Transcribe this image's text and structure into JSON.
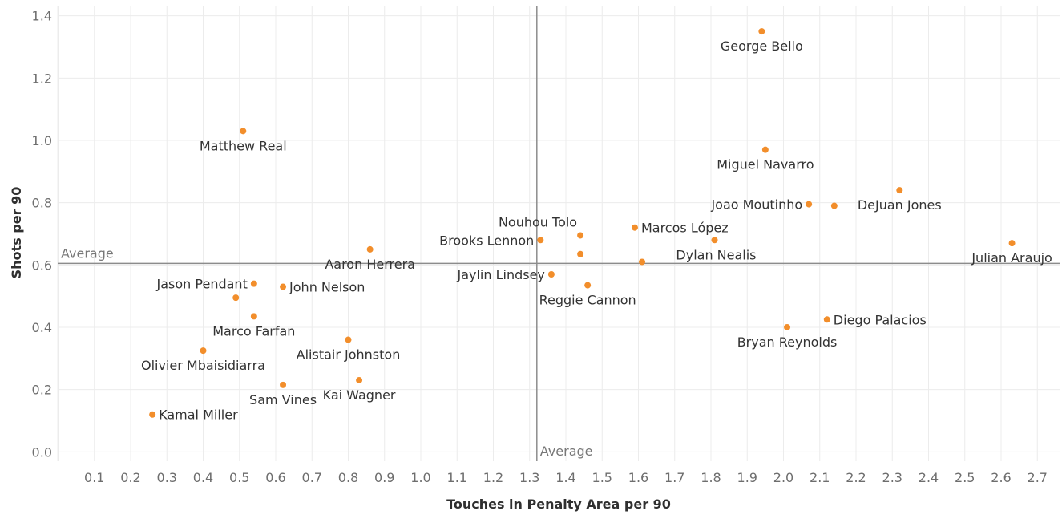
{
  "chart_data": {
    "type": "scatter",
    "xlabel": "Touches in Penalty Area per 90",
    "ylabel": "Shots per 90",
    "xlim": [
      0,
      2.8
    ],
    "ylim": [
      -0.03,
      1.43
    ],
    "x_ticks": [
      "0.1",
      "0.2",
      "0.3",
      "0.4",
      "0.5",
      "0.6",
      "0.7",
      "0.8",
      "0.9",
      "1.0",
      "1.1",
      "1.2",
      "1.3",
      "1.4",
      "1.5",
      "1.6",
      "1.7",
      "1.8",
      "1.9",
      "2.0",
      "2.1",
      "2.2",
      "2.3",
      "2.4",
      "2.5",
      "2.6",
      "2.7"
    ],
    "y_ticks": [
      "0.0",
      "0.2",
      "0.4",
      "0.6",
      "0.8",
      "1.0",
      "1.2",
      "1.4"
    ],
    "grid": true,
    "point_color": "#f28e2b",
    "reference_lines": {
      "x_average": 1.32,
      "y_average": 0.605,
      "x_label": "Average",
      "y_label": "Average"
    },
    "points": [
      {
        "name": "George Bello",
        "x": 1.94,
        "y": 1.35,
        "label_pos": "below"
      },
      {
        "name": "Matthew Real",
        "x": 0.51,
        "y": 1.03,
        "label_pos": "below"
      },
      {
        "name": "Miguel Navarro",
        "x": 1.95,
        "y": 0.97,
        "label_pos": "below"
      },
      {
        "name": "DeJuan Jones",
        "x": 2.32,
        "y": 0.84,
        "label_pos": "below"
      },
      {
        "name": "Joao Moutinho",
        "x": 2.07,
        "y": 0.795,
        "label_pos": "left"
      },
      {
        "name": "",
        "x": 2.14,
        "y": 0.79,
        "label_pos": "none"
      },
      {
        "name": "Marcos López",
        "x": 1.59,
        "y": 0.72,
        "label_pos": "right"
      },
      {
        "name": "Nouhou Tolo",
        "x": 1.44,
        "y": 0.695,
        "label_pos": "above-left"
      },
      {
        "name": "Brooks Lennon",
        "x": 1.33,
        "y": 0.68,
        "label_pos": "left"
      },
      {
        "name": "Dylan Nealis",
        "x": 1.81,
        "y": 0.68,
        "label_pos": "below-left"
      },
      {
        "name": "Julian Araujo",
        "x": 2.63,
        "y": 0.67,
        "label_pos": "below"
      },
      {
        "name": "Aaron Herrera",
        "x": 0.86,
        "y": 0.65,
        "label_pos": "below"
      },
      {
        "name": "",
        "x": 1.44,
        "y": 0.635,
        "label_pos": "none"
      },
      {
        "name": "",
        "x": 1.61,
        "y": 0.61,
        "label_pos": "none"
      },
      {
        "name": "Jaylin Lindsey",
        "x": 1.36,
        "y": 0.57,
        "label_pos": "left"
      },
      {
        "name": "Jason Pendant",
        "x": 0.54,
        "y": 0.54,
        "label_pos": "left"
      },
      {
        "name": "Reggie Cannon",
        "x": 1.46,
        "y": 0.535,
        "label_pos": "below"
      },
      {
        "name": "John Nelson",
        "x": 0.62,
        "y": 0.53,
        "label_pos": "right"
      },
      {
        "name": "",
        "x": 0.49,
        "y": 0.495,
        "label_pos": "none"
      },
      {
        "name": "Marco Farfan",
        "x": 0.54,
        "y": 0.435,
        "label_pos": "below"
      },
      {
        "name": "Diego Palacios",
        "x": 2.12,
        "y": 0.425,
        "label_pos": "right"
      },
      {
        "name": "Bryan Reynolds",
        "x": 2.01,
        "y": 0.4,
        "label_pos": "below"
      },
      {
        "name": "Alistair Johnston",
        "x": 0.8,
        "y": 0.36,
        "label_pos": "below"
      },
      {
        "name": "Olivier Mbaisidiarra",
        "x": 0.4,
        "y": 0.325,
        "label_pos": "below"
      },
      {
        "name": "Kai Wagner",
        "x": 0.83,
        "y": 0.23,
        "label_pos": "below"
      },
      {
        "name": "Sam Vines",
        "x": 0.62,
        "y": 0.215,
        "label_pos": "below"
      },
      {
        "name": "Kamal Miller",
        "x": 0.26,
        "y": 0.12,
        "label_pos": "right"
      }
    ]
  }
}
